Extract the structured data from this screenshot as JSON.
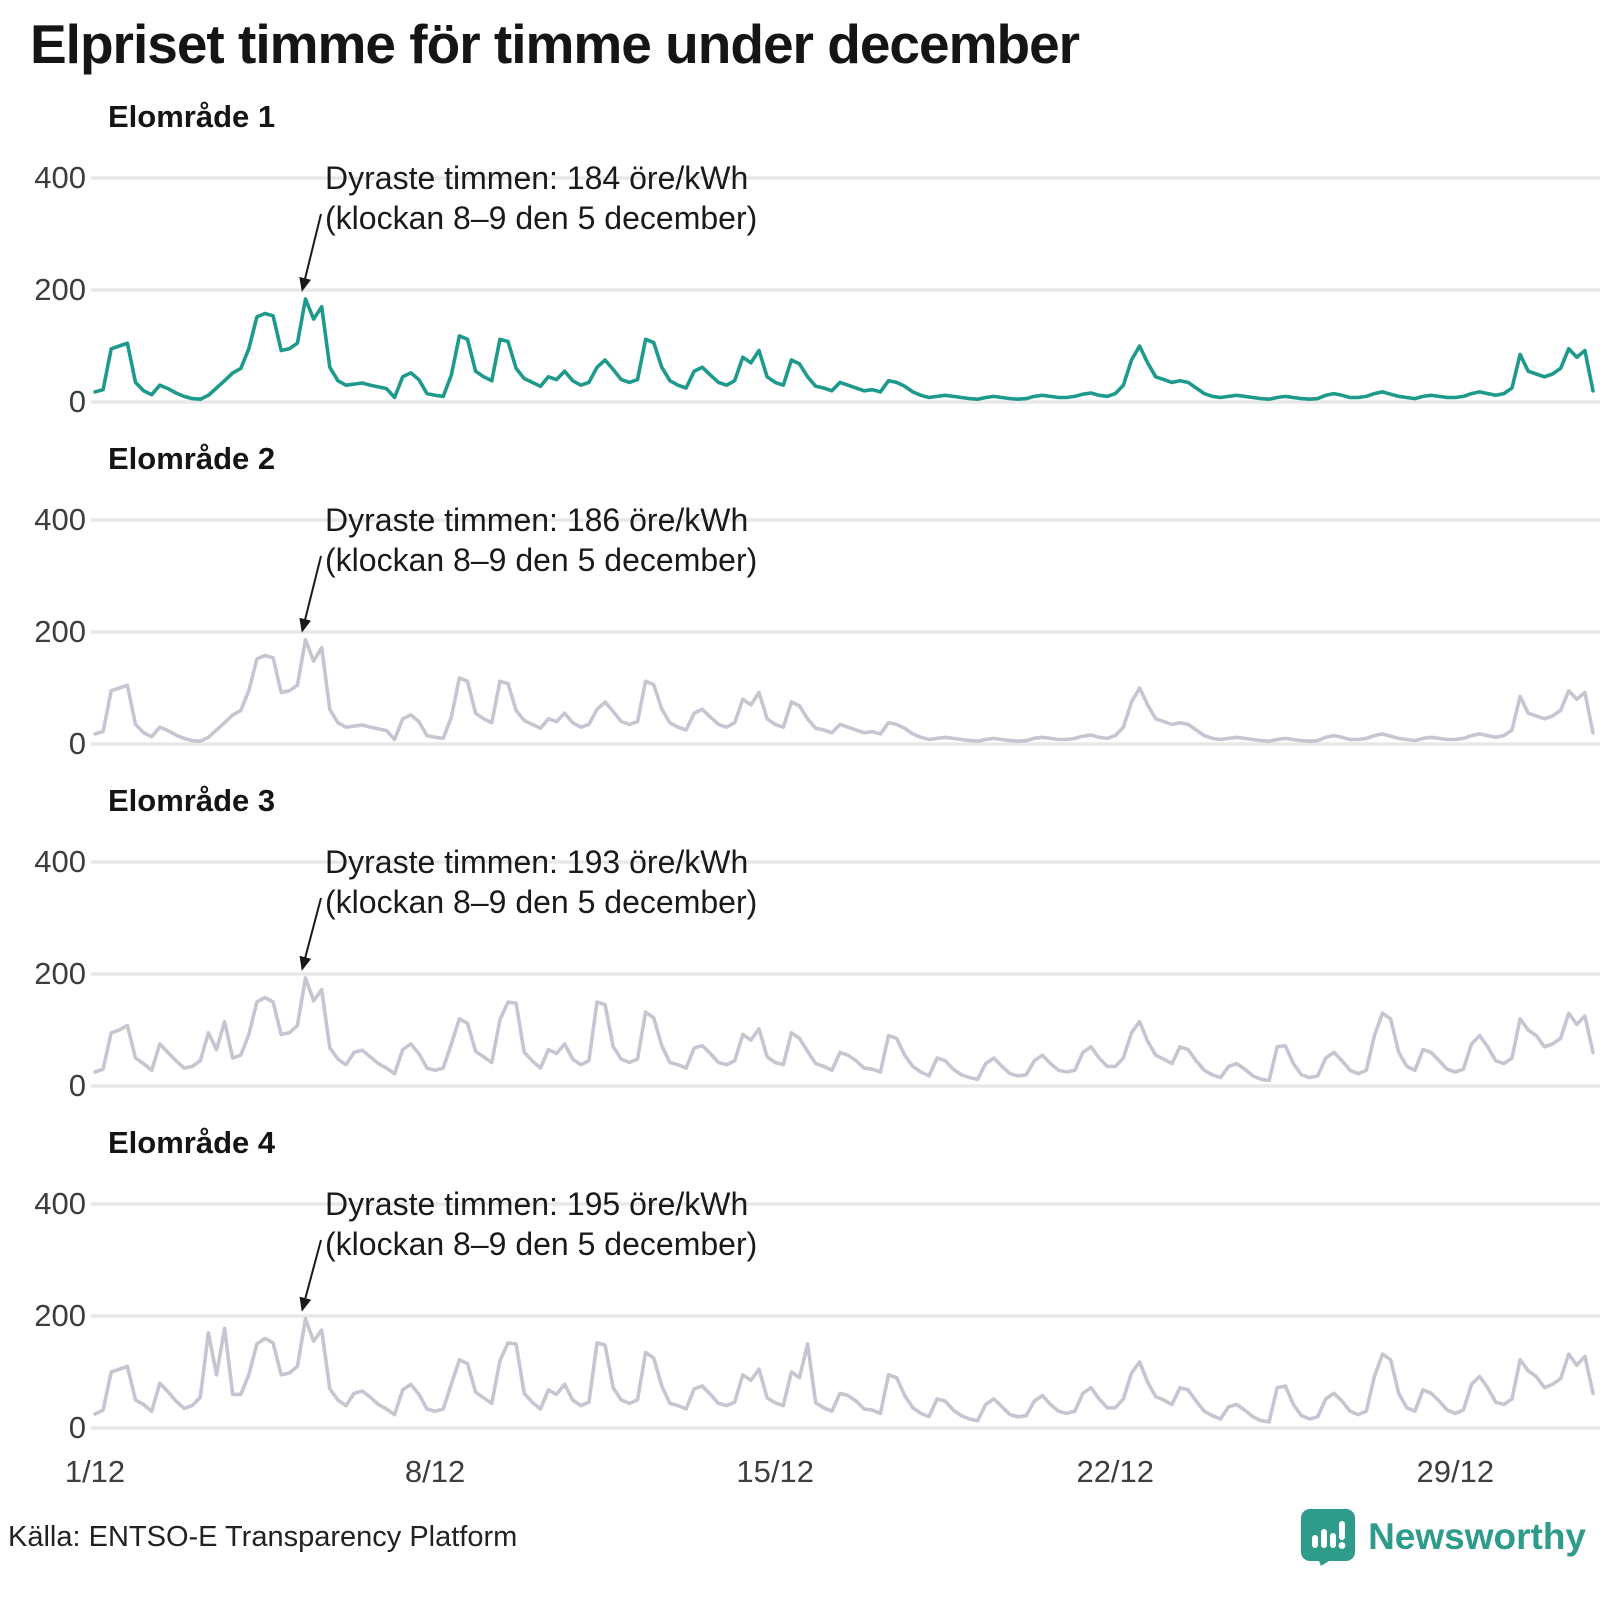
{
  "title": "Elpriset timme för timme under december",
  "source": "Källa: ENTSO-E Transparency Platform",
  "logo_text": "Newsworthy",
  "colors": {
    "highlight_line": "#1e9a8c",
    "muted_line": "#c7c5d2",
    "gridline": "#e8e8e8",
    "text": "#1a1a1a",
    "axis_text": "#3d3d3d",
    "logo_teal": "#2e9b8b"
  },
  "y_axis": {
    "tick_labels": [
      "400",
      "200",
      "0"
    ],
    "tick_values": [
      400,
      200,
      0
    ],
    "unit": "öre/kWh",
    "ylim": [
      0,
      400
    ],
    "grid": "on"
  },
  "x_axis": {
    "tick_labels": [
      "1/12",
      "8/12",
      "15/12",
      "22/12",
      "29/12"
    ],
    "tick_day_offsets": [
      0,
      7,
      14,
      21,
      28
    ],
    "range_days": 31
  },
  "chart_data": [
    {
      "type": "line",
      "title": "Elområde 1",
      "color": "#1e9a8c",
      "unit": "öre/kWh",
      "x_unit": "December, one value per 4 hours (estimated from hourly curve)",
      "annotation": {
        "line1": "Dyraste timmen: 184 öre/kWh",
        "line2": "(klockan 8–9 den 5 december)",
        "peak_value": 184,
        "peak_time": "klockan 8–9 den 5 december",
        "peak_point_index": 26
      },
      "values": [
        18,
        22,
        95,
        100,
        105,
        35,
        20,
        13,
        30,
        24,
        16,
        10,
        6,
        5,
        12,
        25,
        38,
        52,
        60,
        95,
        152,
        158,
        154,
        92,
        95,
        105,
        184,
        148,
        170,
        62,
        38,
        30,
        32,
        34,
        30,
        27,
        24,
        8,
        45,
        52,
        40,
        15,
        12,
        10,
        48,
        118,
        112,
        55,
        45,
        38,
        112,
        108,
        60,
        42,
        35,
        28,
        45,
        40,
        55,
        38,
        30,
        35,
        62,
        75,
        58,
        40,
        35,
        40,
        112,
        106,
        62,
        38,
        30,
        25,
        55,
        62,
        48,
        35,
        30,
        38,
        80,
        70,
        92,
        45,
        35,
        30,
        75,
        68,
        45,
        28,
        25,
        20,
        35,
        30,
        25,
        20,
        22,
        18,
        38,
        35,
        28,
        18,
        12,
        8,
        10,
        12,
        10,
        8,
        6,
        5,
        8,
        10,
        8,
        6,
        5,
        6,
        10,
        12,
        10,
        8,
        8,
        10,
        14,
        16,
        12,
        10,
        15,
        30,
        75,
        100,
        70,
        45,
        40,
        35,
        38,
        35,
        25,
        15,
        10,
        8,
        10,
        12,
        10,
        8,
        6,
        5,
        8,
        10,
        8,
        6,
        5,
        6,
        12,
        15,
        12,
        8,
        8,
        10,
        15,
        18,
        14,
        10,
        8,
        6,
        10,
        12,
        10,
        8,
        8,
        10,
        15,
        18,
        15,
        12,
        15,
        25,
        85,
        55,
        50,
        45,
        50,
        60,
        95,
        80,
        92,
        20
      ]
    },
    {
      "type": "line",
      "title": "Elområde 2",
      "color": "#c7c5d2",
      "unit": "öre/kWh",
      "x_unit": "December, one value per 4 hours (estimated from hourly curve)",
      "annotation": {
        "line1": "Dyraste timmen: 186 öre/kWh",
        "line2": "(klockan 8–9 den 5 december)",
        "peak_value": 186,
        "peak_time": "klockan 8–9 den 5 december",
        "peak_point_index": 26
      },
      "values": [
        18,
        22,
        95,
        100,
        105,
        35,
        20,
        13,
        30,
        24,
        16,
        10,
        6,
        5,
        12,
        25,
        38,
        52,
        60,
        95,
        152,
        158,
        154,
        92,
        95,
        105,
        186,
        148,
        172,
        62,
        38,
        30,
        32,
        34,
        30,
        27,
        24,
        8,
        45,
        52,
        40,
        15,
        12,
        10,
        48,
        118,
        112,
        55,
        45,
        38,
        112,
        108,
        60,
        42,
        35,
        28,
        45,
        40,
        55,
        38,
        30,
        35,
        62,
        75,
        58,
        40,
        35,
        40,
        112,
        106,
        62,
        38,
        30,
        25,
        55,
        62,
        48,
        35,
        30,
        38,
        80,
        70,
        92,
        45,
        35,
        30,
        75,
        68,
        45,
        28,
        25,
        20,
        35,
        30,
        25,
        20,
        22,
        18,
        38,
        35,
        28,
        18,
        12,
        8,
        10,
        12,
        10,
        8,
        6,
        5,
        8,
        10,
        8,
        6,
        5,
        6,
        10,
        12,
        10,
        8,
        8,
        10,
        14,
        16,
        12,
        10,
        15,
        30,
        75,
        100,
        70,
        45,
        40,
        35,
        38,
        35,
        25,
        15,
        10,
        8,
        10,
        12,
        10,
        8,
        6,
        5,
        8,
        10,
        8,
        6,
        5,
        6,
        12,
        15,
        12,
        8,
        8,
        10,
        15,
        18,
        14,
        10,
        8,
        6,
        10,
        12,
        10,
        8,
        8,
        10,
        15,
        18,
        15,
        12,
        15,
        25,
        85,
        55,
        50,
        45,
        50,
        60,
        95,
        80,
        92,
        20
      ]
    },
    {
      "type": "line",
      "title": "Elområde 3",
      "color": "#c7c5d2",
      "unit": "öre/kWh",
      "x_unit": "December, one value per 4 hours (estimated from hourly curve)",
      "annotation": {
        "line1": "Dyraste timmen: 193 öre/kWh",
        "line2": "(klockan 8–9 den 5 december)",
        "peak_value": 193,
        "peak_time": "klockan 8–9 den 5 december",
        "peak_point_index": 26
      },
      "values": [
        25,
        30,
        95,
        100,
        108,
        50,
        40,
        28,
        75,
        60,
        45,
        32,
        35,
        45,
        95,
        65,
        115,
        50,
        55,
        92,
        150,
        158,
        150,
        92,
        95,
        108,
        193,
        152,
        172,
        68,
        48,
        38,
        60,
        64,
        52,
        40,
        32,
        22,
        65,
        75,
        58,
        32,
        28,
        32,
        75,
        120,
        112,
        62,
        52,
        42,
        118,
        150,
        148,
        60,
        45,
        32,
        65,
        58,
        75,
        48,
        38,
        45,
        150,
        145,
        70,
        48,
        42,
        48,
        132,
        122,
        72,
        42,
        38,
        32,
        68,
        72,
        58,
        42,
        38,
        45,
        92,
        82,
        102,
        52,
        42,
        38,
        95,
        85,
        62,
        40,
        35,
        28,
        60,
        55,
        45,
        32,
        30,
        25,
        90,
        85,
        55,
        35,
        25,
        18,
        50,
        45,
        30,
        20,
        15,
        12,
        40,
        50,
        35,
        22,
        18,
        20,
        45,
        55,
        40,
        28,
        25,
        28,
        60,
        70,
        50,
        35,
        35,
        50,
        95,
        115,
        80,
        55,
        48,
        40,
        70,
        65,
        45,
        28,
        20,
        15,
        35,
        40,
        30,
        18,
        12,
        10,
        70,
        72,
        40,
        20,
        15,
        18,
        50,
        60,
        45,
        28,
        22,
        28,
        90,
        130,
        120,
        60,
        35,
        28,
        65,
        60,
        45,
        30,
        25,
        30,
        75,
        90,
        70,
        45,
        40,
        50,
        120,
        100,
        90,
        70,
        75,
        85,
        130,
        110,
        125,
        60
      ]
    },
    {
      "type": "line",
      "title": "Elområde 4",
      "color": "#c7c5d2",
      "unit": "öre/kWh",
      "x_unit": "December, one value per 4 hours (estimated from hourly curve)",
      "annotation": {
        "line1": "Dyraste timmen: 195 öre/kWh",
        "line2": "(klockan 8–9 den 5 december)",
        "peak_value": 195,
        "peak_time": "klockan 8–9 den 5 december",
        "peak_point_index": 26
      },
      "values": [
        25,
        32,
        100,
        105,
        110,
        50,
        42,
        30,
        80,
        65,
        48,
        35,
        40,
        55,
        170,
        95,
        178,
        60,
        60,
        95,
        150,
        160,
        152,
        95,
        98,
        110,
        195,
        155,
        175,
        70,
        50,
        40,
        62,
        66,
        55,
        42,
        34,
        24,
        68,
        78,
        60,
        34,
        30,
        34,
        78,
        122,
        115,
        64,
        54,
        44,
        120,
        152,
        150,
        62,
        46,
        34,
        68,
        60,
        78,
        50,
        40,
        46,
        152,
        148,
        72,
        50,
        44,
        50,
        135,
        125,
        75,
        44,
        40,
        34,
        70,
        75,
        60,
        44,
        40,
        46,
        95,
        85,
        105,
        54,
        45,
        40,
        100,
        90,
        150,
        45,
        36,
        30,
        62,
        58,
        48,
        34,
        32,
        26,
        95,
        90,
        58,
        36,
        26,
        20,
        52,
        48,
        32,
        22,
        16,
        13,
        42,
        52,
        38,
        24,
        20,
        22,
        48,
        58,
        42,
        30,
        26,
        30,
        62,
        72,
        52,
        36,
        36,
        52,
        98,
        118,
        82,
        56,
        50,
        42,
        72,
        68,
        48,
        30,
        22,
        16,
        38,
        42,
        32,
        20,
        13,
        11,
        72,
        75,
        42,
        22,
        16,
        20,
        52,
        62,
        48,
        30,
        24,
        30,
        92,
        132,
        122,
        62,
        36,
        30,
        68,
        62,
        48,
        32,
        26,
        32,
        78,
        92,
        72,
        46,
        42,
        52,
        122,
        102,
        92,
        72,
        78,
        88,
        132,
        112,
        128,
        62
      ]
    }
  ]
}
